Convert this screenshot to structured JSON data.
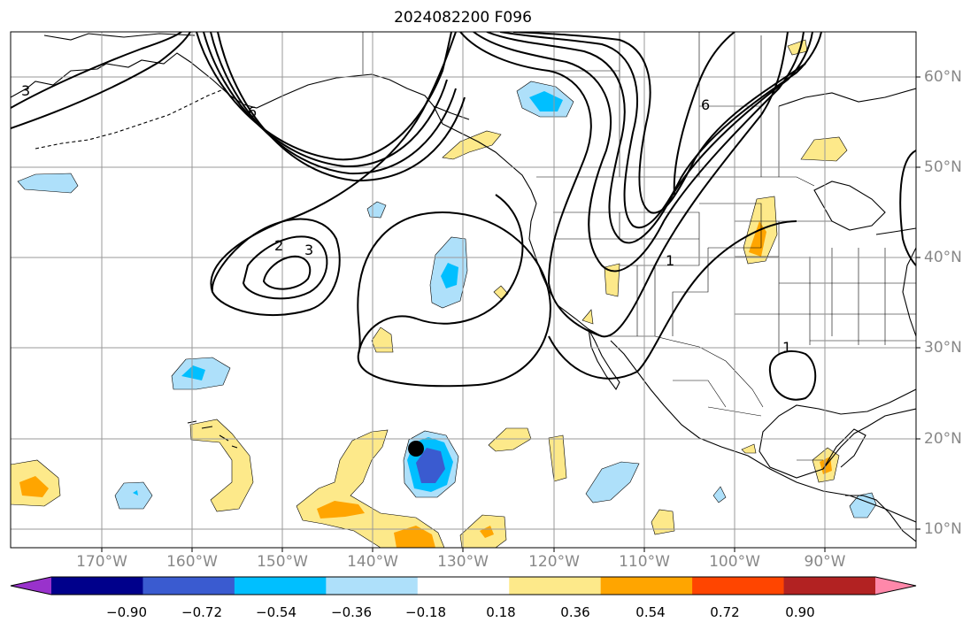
{
  "title": "2024082200 F096",
  "lat_labels": [
    "60°N",
    "50°N",
    "40°N",
    "30°N",
    "20°N",
    "10°N"
  ],
  "lon_labels": [
    "170°W",
    "160°W",
    "150°W",
    "140°W",
    "130°W",
    "120°W",
    "110°W",
    "100°W",
    "90°W"
  ],
  "contour_labels": [
    "3",
    "6",
    "2",
    "3",
    "6",
    "1",
    "1"
  ],
  "colorbar": {
    "ticks": [
      "−0.90",
      "−0.72",
      "−0.54",
      "−0.36",
      "−0.18",
      "0.18",
      "0.36",
      "0.54",
      "0.72",
      "0.90"
    ],
    "colors": [
      "#9932cc",
      "#00008b",
      "#3a5bd0",
      "#00bfff",
      "#aee0fa",
      "#ffffff",
      "#fde98a",
      "#ffa500",
      "#ff4500",
      "#b22222",
      "#ff88aa"
    ]
  },
  "colors": {
    "grid": "#999999",
    "coast": "#000000",
    "tick_text": "#888888"
  }
}
